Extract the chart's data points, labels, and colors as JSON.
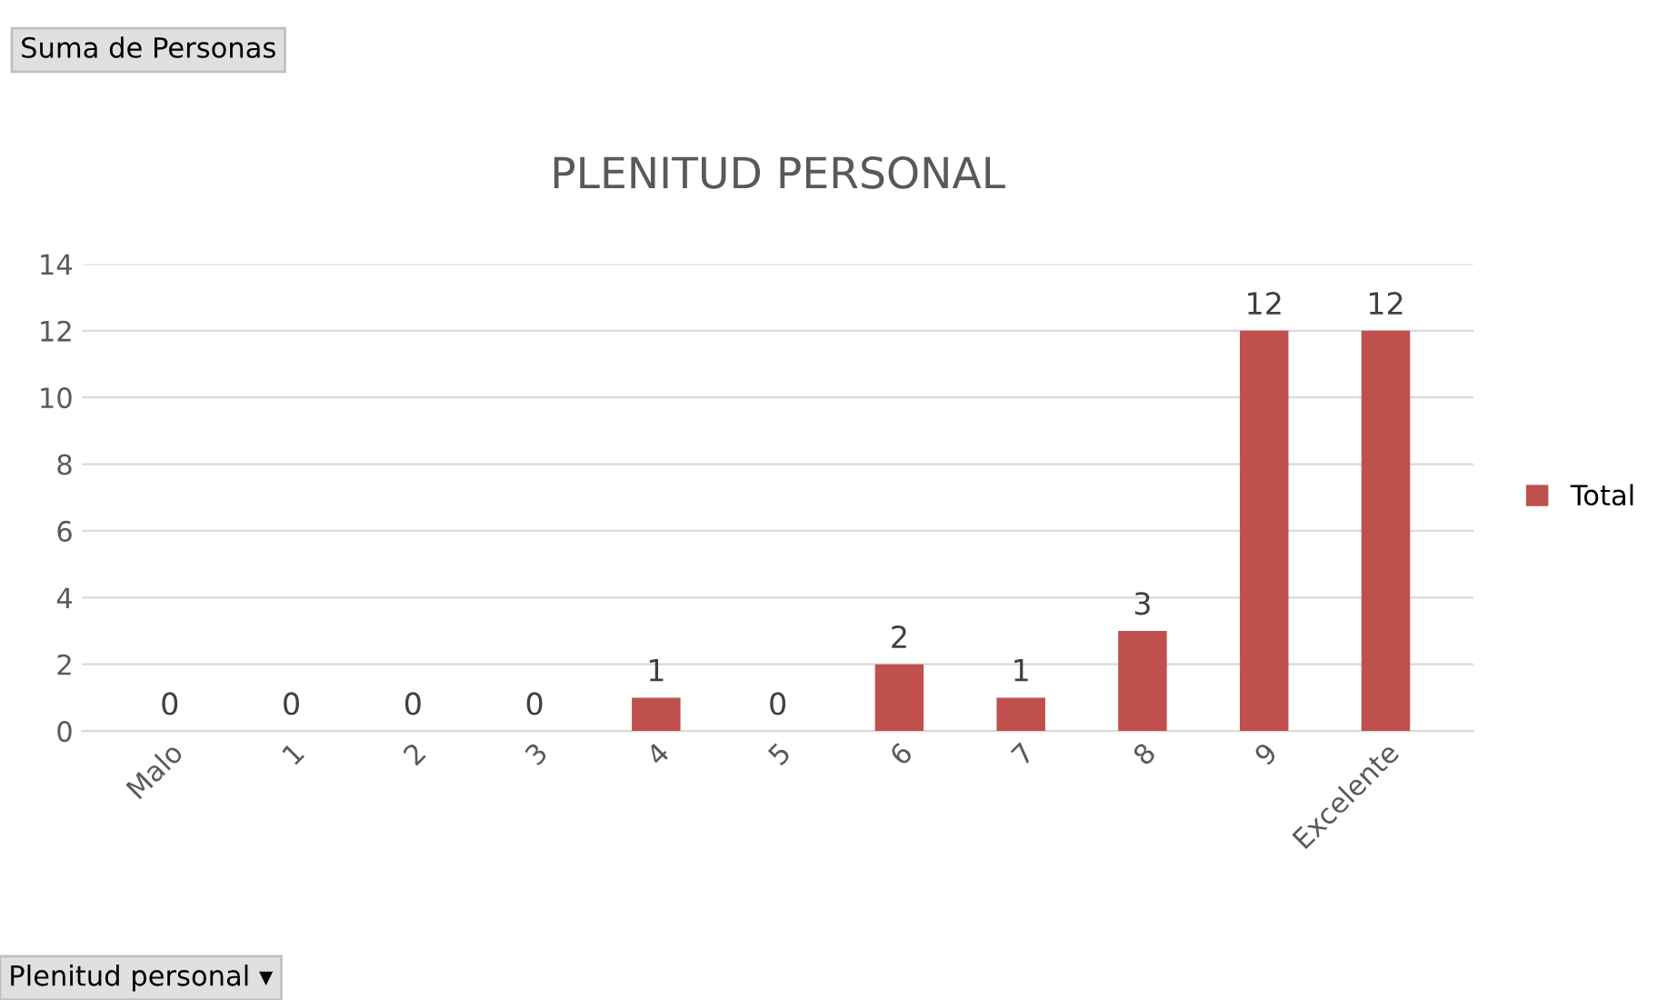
{
  "chart_data": {
    "type": "bar",
    "title": "PLENITUD PERSONAL",
    "categories": [
      "Malo",
      "1",
      "2",
      "3",
      "4",
      "5",
      "6",
      "7",
      "8",
      "9",
      "Excelente"
    ],
    "series": [
      {
        "name": "Total",
        "color": "#c0504d",
        "values": [
          0,
          0,
          0,
          0,
          1,
          0,
          2,
          1,
          3,
          12,
          12
        ]
      }
    ],
    "ylim": [
      0,
      14
    ],
    "yticks": [
      0,
      2,
      4,
      6,
      8,
      10,
      12,
      14
    ],
    "grid": "y",
    "legend": "right",
    "data_labels": true,
    "annotations": [
      "Suma de Personas",
      "Plenitud personal ▾"
    ]
  }
}
